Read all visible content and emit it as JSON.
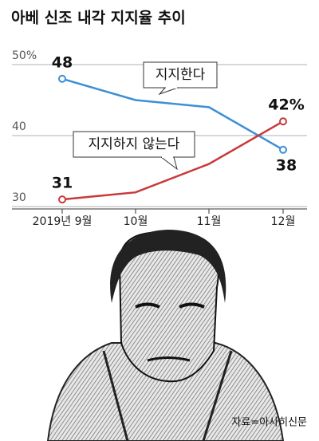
{
  "chart_data": {
    "type": "line",
    "title": "아베 신조 내각 지지율 추이",
    "categories": [
      "2019년 9월",
      "10월",
      "11월",
      "12월"
    ],
    "series": [
      {
        "name": "지지한다",
        "color": "#3d8fd6",
        "values": [
          48,
          45,
          44,
          38
        ],
        "value_labels": [
          "48",
          null,
          null,
          "38"
        ]
      },
      {
        "name": "지지하지 않는다",
        "color": "#c8393a",
        "values": [
          31,
          32,
          36,
          42
        ],
        "value_labels": [
          "31",
          null,
          null,
          "42%"
        ]
      }
    ],
    "ylim": [
      30,
      50
    ],
    "yticks": [
      30,
      40,
      {
        "value": 50,
        "label": "50%"
      }
    ],
    "grid": true,
    "source": "자료=아사히신문"
  }
}
